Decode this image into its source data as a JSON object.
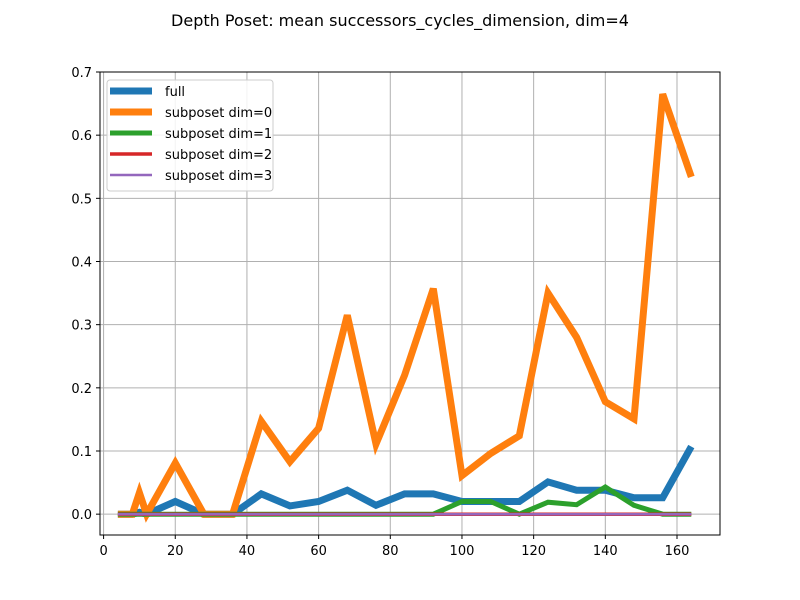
{
  "chart_data": {
    "type": "line",
    "title": "Depth Poset: mean successors_cycles_dimension, dim=4",
    "xlabel": "",
    "ylabel": "",
    "xlim": [
      -1,
      172
    ],
    "ylim": [
      -0.033,
      0.7
    ],
    "xticks": [
      0,
      20,
      40,
      60,
      80,
      100,
      120,
      140,
      160
    ],
    "yticks": [
      0.0,
      0.1,
      0.2,
      0.3,
      0.4,
      0.5,
      0.6,
      0.7
    ],
    "xtick_labels": [
      "0",
      "20",
      "40",
      "60",
      "80",
      "100",
      "120",
      "140",
      "160"
    ],
    "ytick_labels": [
      "0.0",
      "0.1",
      "0.2",
      "0.3",
      "0.4",
      "0.5",
      "0.6",
      "0.7"
    ],
    "grid": true,
    "legend_position": "top-left",
    "series": [
      {
        "name": "full",
        "color": "#1f77b4",
        "x": [
          4,
          8,
          10,
          12,
          20,
          28,
          36,
          44,
          52,
          60,
          68,
          76,
          84,
          92,
          100,
          108,
          116,
          124,
          132,
          140,
          148,
          156,
          164
        ],
        "y": [
          0.0,
          0.0,
          0.003,
          0.0,
          0.02,
          0.0,
          0.0,
          0.032,
          0.013,
          0.02,
          0.038,
          0.014,
          0.032,
          0.032,
          0.02,
          0.02,
          0.02,
          0.051,
          0.038,
          0.038,
          0.026,
          0.026,
          0.107
        ]
      },
      {
        "name": "subposet dim=0",
        "color": "#ff7f0e",
        "x": [
          4,
          8,
          10,
          12,
          20,
          28,
          36,
          44,
          52,
          60,
          68,
          76,
          84,
          92,
          100,
          108,
          116,
          124,
          132,
          140,
          148,
          156,
          164
        ],
        "y": [
          0.0,
          0.0,
          0.034,
          0.0,
          0.081,
          0.0,
          0.0,
          0.147,
          0.083,
          0.136,
          0.315,
          0.111,
          0.22,
          0.357,
          0.061,
          0.096,
          0.124,
          0.35,
          0.28,
          0.178,
          0.151,
          0.665,
          0.534
        ]
      },
      {
        "name": "subposet dim=1",
        "color": "#2ca02c",
        "x": [
          4,
          8,
          12,
          20,
          28,
          36,
          44,
          52,
          60,
          68,
          76,
          84,
          92,
          100,
          108,
          116,
          124,
          132,
          140,
          148,
          156,
          164
        ],
        "y": [
          0.0,
          0.0,
          0.0,
          0.0,
          0.0,
          0.0,
          0.0,
          0.0,
          0.0,
          0.0,
          0.0,
          0.0,
          0.0,
          0.02,
          0.02,
          0.0,
          0.019,
          0.015,
          0.043,
          0.014,
          0.0,
          0.0
        ]
      },
      {
        "name": "subposet dim=2",
        "color": "#d62728",
        "x": [
          4,
          164
        ],
        "y": [
          0.0,
          0.0
        ]
      },
      {
        "name": "subposet dim=3",
        "color": "#9467bd",
        "x": [
          4,
          164
        ],
        "y": [
          0.0,
          0.0
        ]
      }
    ]
  }
}
